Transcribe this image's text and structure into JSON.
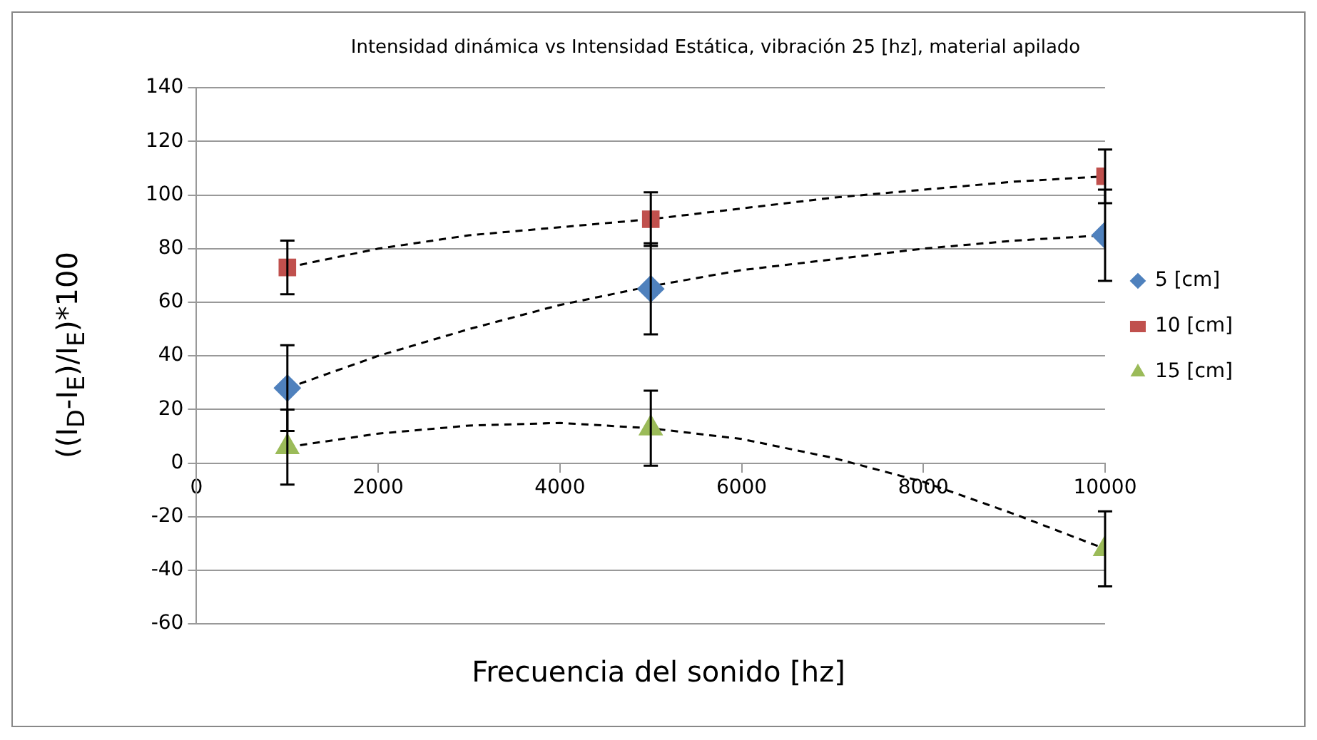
{
  "chart_data": {
    "type": "scatter",
    "title": "Intensidad dinámica vs Intensidad Estática, vibración 25 [hz], material apilado",
    "xlabel": "Frecuencia del sonido [hz]",
    "ylabel": "((I$_{D}$-I$_{E}$)/I$_{E}$)*100",
    "x": [
      1000,
      5000,
      10000
    ],
    "xlim": [
      0,
      10000
    ],
    "xticks": [
      0,
      2000,
      4000,
      6000,
      8000,
      10000
    ],
    "ylim": [
      -60,
      140
    ],
    "yticks": [
      -60,
      -40,
      -20,
      0,
      20,
      40,
      60,
      80,
      100,
      120,
      140
    ],
    "grid": "y",
    "legend": "right",
    "series": [
      {
        "name": "5 [cm]",
        "type": "scatter",
        "color": "#4f81bd",
        "marker": "diamond",
        "values": [
          28,
          65,
          85
        ],
        "errors": [
          16,
          17,
          17
        ]
      },
      {
        "name": "10 [cm]",
        "type": "scatter",
        "color": "#c0504d",
        "marker": "square",
        "values": [
          73,
          91,
          107
        ],
        "errors": [
          10,
          10,
          10
        ]
      },
      {
        "name": "15 [cm]",
        "type": "scatter",
        "color": "#9bbb59",
        "marker": "triangle",
        "values": [
          6,
          13,
          -32
        ],
        "errors": [
          14,
          14,
          14
        ]
      },
      {
        "type": "line",
        "color": "#000000",
        "marker": "none",
        "line_style": "dashed",
        "x": [
          1000,
          2000,
          3000,
          4000,
          5000,
          6000,
          7000,
          8000,
          9000,
          10000
        ],
        "values": [
          28,
          40,
          50,
          59,
          66,
          72,
          76,
          80,
          83,
          85
        ]
      },
      {
        "type": "line",
        "color": "#000000",
        "marker": "none",
        "line_style": "dashed",
        "x": [
          1000,
          2000,
          3000,
          4000,
          5000,
          6000,
          7000,
          8000,
          9000,
          10000
        ],
        "values": [
          73,
          80,
          85,
          88,
          91,
          95,
          99,
          102,
          105,
          107
        ]
      },
      {
        "type": "line",
        "color": "#000000",
        "marker": "none",
        "line_style": "dashed",
        "x": [
          1000,
          2000,
          3000,
          4000,
          5000,
          6000,
          7000,
          8000,
          9000,
          10000
        ],
        "values": [
          6,
          11,
          14,
          15,
          13,
          9,
          2,
          -7,
          -19,
          -32
        ]
      }
    ]
  }
}
